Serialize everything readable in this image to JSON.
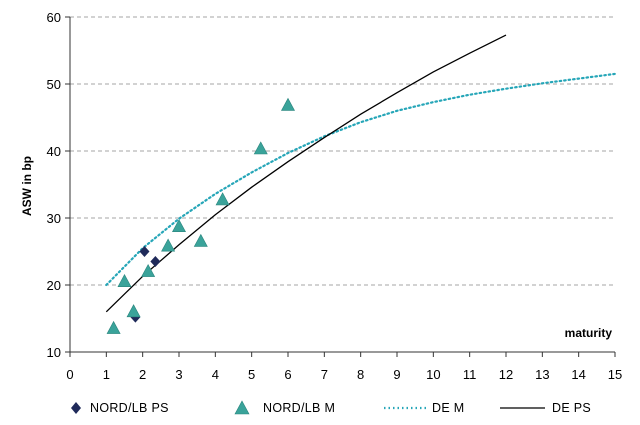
{
  "chart_data": {
    "type": "scatter",
    "title": "",
    "xlabel": "maturity",
    "ylabel": "ASW in bp",
    "xlim": [
      0,
      15
    ],
    "ylim": [
      10,
      60
    ],
    "x_ticks": [
      0,
      1,
      2,
      3,
      4,
      5,
      6,
      7,
      8,
      9,
      10,
      11,
      12,
      13,
      14,
      15
    ],
    "y_ticks": [
      10,
      20,
      30,
      40,
      50,
      60
    ],
    "grid": "horizontal dashed",
    "legend_position": "bottom",
    "colors": {
      "nord_ps": "#1f2a5a",
      "nord_m": "#3aa39a",
      "de_m": "#26a6b8",
      "de_ps": "#000000",
      "grid": "#a6a6a6"
    },
    "series": [
      {
        "name": "NORD/LB PS",
        "kind": "scatter",
        "marker": "diamond",
        "points": [
          [
            1.8,
            15.2
          ],
          [
            2.05,
            25.0
          ],
          [
            2.35,
            23.5
          ]
        ]
      },
      {
        "name": "NORD/LB M",
        "kind": "scatter",
        "marker": "triangle",
        "points": [
          [
            1.2,
            13.5
          ],
          [
            1.5,
            20.5
          ],
          [
            1.75,
            16.0
          ],
          [
            2.15,
            22.0
          ],
          [
            2.7,
            25.8
          ],
          [
            3.0,
            28.7
          ],
          [
            3.6,
            26.5
          ],
          [
            4.2,
            32.7
          ],
          [
            5.25,
            40.3
          ],
          [
            6.0,
            46.8
          ]
        ]
      },
      {
        "name": "DE M",
        "kind": "line",
        "style": "dotted",
        "points": [
          [
            1.0,
            20.0
          ],
          [
            2.0,
            25.5
          ],
          [
            3.0,
            29.9
          ],
          [
            4.0,
            33.6
          ],
          [
            5.0,
            36.8
          ],
          [
            6.0,
            39.7
          ],
          [
            7.0,
            42.2
          ],
          [
            8.0,
            44.3
          ],
          [
            9.0,
            46.0
          ],
          [
            10.0,
            47.3
          ],
          [
            11.0,
            48.4
          ],
          [
            12.0,
            49.3
          ],
          [
            13.0,
            50.1
          ],
          [
            14.0,
            50.8
          ],
          [
            15.0,
            51.5
          ]
        ]
      },
      {
        "name": "DE PS",
        "kind": "line",
        "style": "solid",
        "points": [
          [
            1.0,
            16.0
          ],
          [
            2.0,
            21.3
          ],
          [
            3.0,
            26.0
          ],
          [
            4.0,
            30.5
          ],
          [
            5.0,
            34.6
          ],
          [
            6.0,
            38.4
          ],
          [
            7.0,
            42.0
          ],
          [
            8.0,
            45.5
          ],
          [
            9.0,
            48.7
          ],
          [
            10.0,
            51.8
          ],
          [
            11.0,
            54.6
          ],
          [
            12.0,
            57.3
          ]
        ]
      }
    ]
  }
}
